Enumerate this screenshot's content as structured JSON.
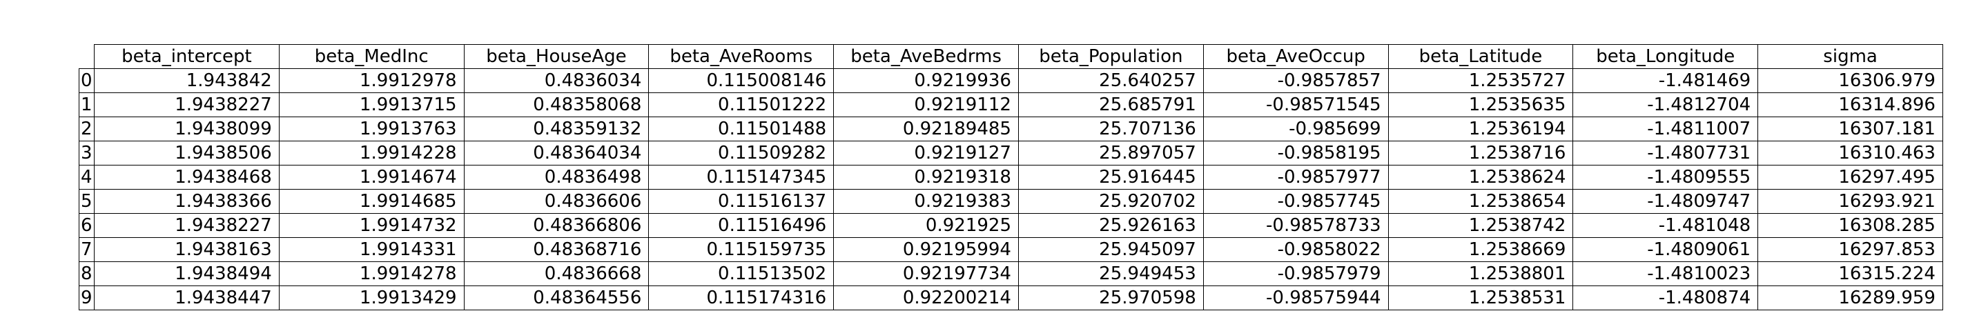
{
  "chart_data": {
    "type": "table",
    "columns": [
      "beta_intercept",
      "beta_MedInc",
      "beta_HouseAge",
      "beta_AveRooms",
      "beta_AveBedrms",
      "beta_Population",
      "beta_AveOccup",
      "beta_Latitude",
      "beta_Longitude",
      "sigma"
    ],
    "row_labels": [
      "0",
      "1",
      "2",
      "3",
      "4",
      "5",
      "6",
      "7",
      "8",
      "9"
    ],
    "rows": [
      [
        "1.943842",
        "1.9912978",
        "0.4836034",
        "0.115008146",
        "0.9219936",
        "25.640257",
        "-0.9857857",
        "1.2535727",
        "-1.481469",
        "16306.979"
      ],
      [
        "1.9438227",
        "1.9913715",
        "0.48358068",
        "0.11501222",
        "0.9219112",
        "25.685791",
        "-0.98571545",
        "1.2535635",
        "-1.4812704",
        "16314.896"
      ],
      [
        "1.9438099",
        "1.9913763",
        "0.48359132",
        "0.11501488",
        "0.92189485",
        "25.707136",
        "-0.985699",
        "1.2536194",
        "-1.4811007",
        "16307.181"
      ],
      [
        "1.9438506",
        "1.9914228",
        "0.48364034",
        "0.11509282",
        "0.9219127",
        "25.897057",
        "-0.9858195",
        "1.2538716",
        "-1.4807731",
        "16310.463"
      ],
      [
        "1.9438468",
        "1.9914674",
        "0.4836498",
        "0.115147345",
        "0.9219318",
        "25.916445",
        "-0.9857977",
        "1.2538624",
        "-1.4809555",
        "16297.495"
      ],
      [
        "1.9438366",
        "1.9914685",
        "0.4836606",
        "0.11516137",
        "0.9219383",
        "25.920702",
        "-0.9857745",
        "1.2538654",
        "-1.4809747",
        "16293.921"
      ],
      [
        "1.9438227",
        "1.9914732",
        "0.48366806",
        "0.11516496",
        "0.921925",
        "25.926163",
        "-0.98578733",
        "1.2538742",
        "-1.481048",
        "16308.285"
      ],
      [
        "1.9438163",
        "1.9914331",
        "0.48368716",
        "0.115159735",
        "0.92195994",
        "25.945097",
        "-0.9858022",
        "1.2538669",
        "-1.4809061",
        "16297.853"
      ],
      [
        "1.9438494",
        "1.9914278",
        "0.4836668",
        "0.11513502",
        "0.92197734",
        "25.949453",
        "-0.9857979",
        "1.2538801",
        "-1.4810023",
        "16315.224"
      ],
      [
        "1.9438447",
        "1.9913429",
        "0.48364556",
        "0.115174316",
        "0.92200214",
        "25.970598",
        "-0.98575944",
        "1.2538531",
        "-1.480874",
        "16289.959"
      ]
    ]
  }
}
